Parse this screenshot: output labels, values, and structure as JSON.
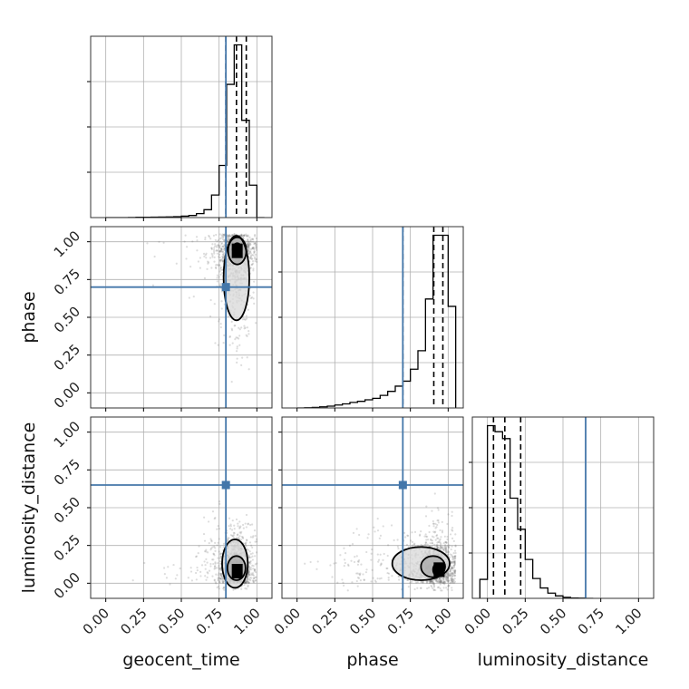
{
  "chart_data": {
    "type": "corner",
    "parameters": [
      "geocent_time",
      "phase",
      "luminosity_distance"
    ],
    "truths": [
      0.795,
      0.7,
      0.65
    ],
    "truth_color": "#4477aa",
    "tick_values": [
      0.0,
      0.25,
      0.5,
      0.75,
      1.0
    ],
    "tick_labels": [
      "0.00",
      "0.25",
      "0.50",
      "0.75",
      "1.00"
    ],
    "grid": true,
    "diagonal_range": [
      -0.1,
      1.1
    ],
    "histograms": [
      {
        "parameter": "geocent_time",
        "bin_edges": [
          0.0,
          0.05,
          0.1,
          0.15,
          0.2,
          0.25,
          0.3,
          0.35,
          0.4,
          0.45,
          0.5,
          0.55,
          0.6,
          0.65,
          0.7,
          0.75,
          0.8,
          0.85,
          0.9,
          0.95,
          1.0,
          1.05
        ],
        "counts": [
          0,
          0,
          0,
          1,
          2,
          2,
          3,
          4,
          5,
          6,
          10,
          15,
          28,
          56,
          160,
          370,
          945,
          1225,
          690,
          230,
          0
        ],
        "quantiles": [
          0.795,
          0.865,
          0.93
        ]
      },
      {
        "parameter": "phase",
        "bin_edges": [
          0.0,
          0.05,
          0.1,
          0.15,
          0.2,
          0.25,
          0.3,
          0.35,
          0.4,
          0.45,
          0.5,
          0.55,
          0.6,
          0.65,
          0.7,
          0.75,
          0.8,
          0.85,
          0.9,
          0.95,
          1.0,
          1.05
        ],
        "counts": [
          0,
          1,
          3,
          6,
          10,
          16,
          22,
          30,
          36,
          44,
          52,
          68,
          90,
          118,
          145,
          210,
          310,
          590,
          935,
          935,
          550
        ],
        "quantiles": [
          0.7,
          0.905,
          0.965
        ]
      },
      {
        "parameter": "luminosity_distance",
        "bin_edges": [
          -0.05,
          0.0,
          0.05,
          0.1,
          0.15,
          0.2,
          0.25,
          0.3,
          0.35,
          0.4,
          0.45,
          0.5,
          0.55,
          0.6,
          0.65,
          0.7
        ],
        "counts": [
          110,
          1000,
          965,
          925,
          580,
          400,
          225,
          115,
          60,
          30,
          14,
          6,
          2,
          1,
          0
        ],
        "quantiles": [
          0.04,
          0.115,
          0.22
        ]
      }
    ],
    "pairs": [
      {
        "x": "geocent_time",
        "y": "phase",
        "peak": [
          0.87,
          0.94
        ],
        "contours": [
          {
            "cx": 0.865,
            "cy": 0.76,
            "rx": 0.085,
            "ry": 0.28
          },
          {
            "cx": 0.87,
            "cy": 0.94,
            "rx": 0.06,
            "ry": 0.09
          },
          {
            "cx": 0.87,
            "cy": 0.95,
            "rx": 0.03,
            "ry": 0.04
          }
        ]
      },
      {
        "x": "geocent_time",
        "y": "luminosity_distance",
        "peak": [
          0.87,
          0.08
        ],
        "contours": [
          {
            "cx": 0.855,
            "cy": 0.13,
            "rx": 0.085,
            "ry": 0.16
          },
          {
            "cx": 0.865,
            "cy": 0.1,
            "rx": 0.06,
            "ry": 0.08
          },
          {
            "cx": 0.87,
            "cy": 0.08,
            "rx": 0.025,
            "ry": 0.04
          }
        ]
      },
      {
        "x": "phase",
        "y": "luminosity_distance",
        "peak": [
          0.94,
          0.09
        ],
        "contours": [
          {
            "cx": 0.82,
            "cy": 0.13,
            "rx": 0.19,
            "ry": 0.11
          },
          {
            "cx": 0.9,
            "cy": 0.11,
            "rx": 0.08,
            "ry": 0.07
          },
          {
            "cx": 0.93,
            "cy": 0.09,
            "rx": 0.03,
            "ry": 0.04
          }
        ]
      }
    ]
  }
}
